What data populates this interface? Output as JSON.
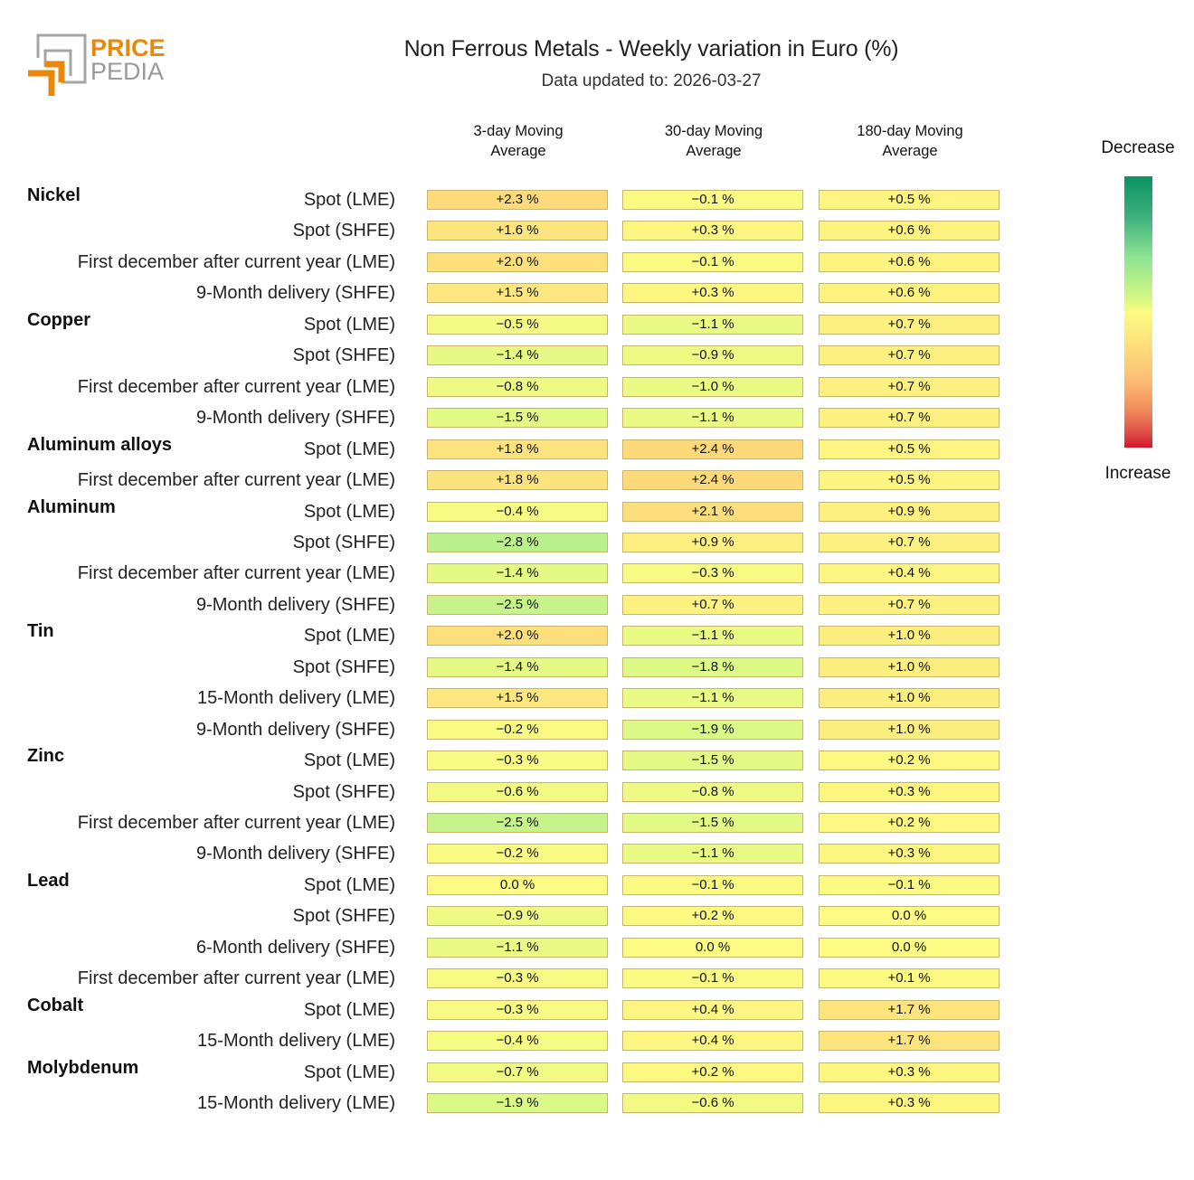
{
  "header": {
    "logo_top": "PRICE",
    "logo_bottom": "PEDIA",
    "title": "Non Ferrous Metals - Weekly variation in Euro (%)",
    "subtitle": "Data updated to: 2026-03-27"
  },
  "legend": {
    "top_label": "Decrease",
    "bottom_label": "Increase"
  },
  "colors": {
    "brand_orange": "#e8890c",
    "logo_gray": "#9a9a9a"
  },
  "chart_data": {
    "type": "heatmap",
    "title": "Non Ferrous Metals - Weekly variation in Euro (%)",
    "subtitle": "Data updated to: 2026-03-27",
    "columns": [
      "3-day Moving Average",
      "30-day Moving Average",
      "180-day Moving Average"
    ],
    "column_lines": [
      [
        "3-day Moving",
        "Average"
      ],
      [
        "30-day Moving",
        "Average"
      ],
      [
        "180-day Moving",
        "Average"
      ]
    ],
    "color_scale": {
      "low_label": "Decrease",
      "high_label": "Increase",
      "low_color": "#0b9363",
      "mid_color": "#fdfb83",
      "high_color": "#d5162d"
    },
    "groups": [
      {
        "name": "Nickel",
        "rows": [
          {
            "label": "Spot (LME)",
            "values": [
              2.3,
              -0.1,
              0.5
            ]
          },
          {
            "label": "Spot (SHFE)",
            "values": [
              1.6,
              0.3,
              0.6
            ]
          },
          {
            "label": "First december after current year (LME)",
            "values": [
              2.0,
              -0.1,
              0.6
            ]
          },
          {
            "label": "9-Month delivery (SHFE)",
            "values": [
              1.5,
              0.3,
              0.6
            ]
          }
        ]
      },
      {
        "name": "Copper",
        "rows": [
          {
            "label": "Spot (LME)",
            "values": [
              -0.5,
              -1.1,
              0.7
            ]
          },
          {
            "label": "Spot (SHFE)",
            "values": [
              -1.4,
              -0.9,
              0.7
            ]
          },
          {
            "label": "First december after current year (LME)",
            "values": [
              -0.8,
              -1.0,
              0.7
            ]
          },
          {
            "label": "9-Month delivery (SHFE)",
            "values": [
              -1.5,
              -1.1,
              0.7
            ]
          }
        ]
      },
      {
        "name": "Aluminum alloys",
        "rows": [
          {
            "label": "Spot (LME)",
            "values": [
              1.8,
              2.4,
              0.5
            ]
          },
          {
            "label": "First december after current year (LME)",
            "values": [
              1.8,
              2.4,
              0.5
            ]
          }
        ]
      },
      {
        "name": "Aluminum",
        "rows": [
          {
            "label": "Spot (LME)",
            "values": [
              -0.4,
              2.1,
              0.9
            ]
          },
          {
            "label": "Spot (SHFE)",
            "values": [
              -2.8,
              0.9,
              0.7
            ]
          },
          {
            "label": "First december after current year (LME)",
            "values": [
              -1.4,
              -0.3,
              0.4
            ]
          },
          {
            "label": "9-Month delivery (SHFE)",
            "values": [
              -2.5,
              0.7,
              0.7
            ]
          }
        ]
      },
      {
        "name": "Tin",
        "rows": [
          {
            "label": "Spot (LME)",
            "values": [
              2.0,
              -1.1,
              1.0
            ]
          },
          {
            "label": "Spot (SHFE)",
            "values": [
              -1.4,
              -1.8,
              1.0
            ]
          },
          {
            "label": "15-Month delivery (LME)",
            "values": [
              1.5,
              -1.1,
              1.0
            ]
          },
          {
            "label": "9-Month delivery (SHFE)",
            "values": [
              -0.2,
              -1.9,
              1.0
            ]
          }
        ]
      },
      {
        "name": "Zinc",
        "rows": [
          {
            "label": "Spot (LME)",
            "values": [
              -0.3,
              -1.5,
              0.2
            ]
          },
          {
            "label": "Spot (SHFE)",
            "values": [
              -0.6,
              -0.8,
              0.3
            ]
          },
          {
            "label": "First december after current year (LME)",
            "values": [
              -2.5,
              -1.5,
              0.2
            ]
          },
          {
            "label": "9-Month delivery (SHFE)",
            "values": [
              -0.2,
              -1.1,
              0.3
            ]
          }
        ]
      },
      {
        "name": "Lead",
        "rows": [
          {
            "label": "Spot (LME)",
            "values": [
              0.0,
              -0.1,
              -0.1
            ]
          },
          {
            "label": "Spot (SHFE)",
            "values": [
              -0.9,
              0.2,
              0.0
            ]
          },
          {
            "label": "6-Month delivery (SHFE)",
            "values": [
              -1.1,
              0.0,
              0.0
            ]
          },
          {
            "label": "First december after current year (LME)",
            "values": [
              -0.3,
              -0.1,
              0.1
            ]
          }
        ]
      },
      {
        "name": "Cobalt",
        "rows": [
          {
            "label": "Spot (LME)",
            "values": [
              -0.3,
              0.4,
              1.7
            ]
          },
          {
            "label": "15-Month delivery (LME)",
            "values": [
              -0.4,
              0.4,
              1.7
            ]
          }
        ]
      },
      {
        "name": "Molybdenum",
        "rows": [
          {
            "label": "Spot (LME)",
            "values": [
              -0.7,
              0.2,
              0.3
            ]
          },
          {
            "label": "15-Month delivery (LME)",
            "values": [
              -1.9,
              -0.6,
              0.3
            ]
          }
        ]
      }
    ]
  }
}
